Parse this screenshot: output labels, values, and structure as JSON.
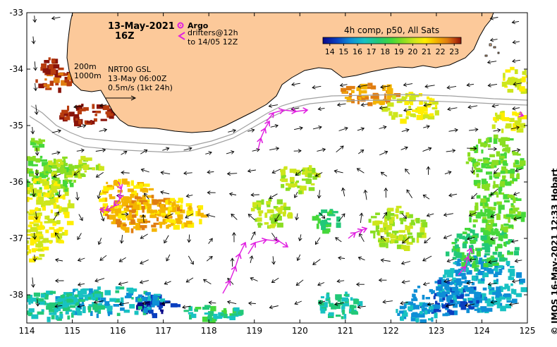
{
  "title": {
    "date": "13-May-2021",
    "time": "16Z"
  },
  "legend": {
    "argo_label": "Argo",
    "drifters_label": "drifters@12h",
    "drifters_to": "to 14/05 12Z",
    "depth_200": "200m",
    "depth_1000": "1000m",
    "product": "NRT00 GSL",
    "product_time": "13-May 06:00Z",
    "vector_scale": "0.5m/s (1kt 24h)",
    "colorbar_title": "4h comp, p50, All Sats",
    "colorbar_ticks": [
      "14",
      "15",
      "16",
      "17",
      "18",
      "19",
      "20",
      "21",
      "22",
      "23"
    ],
    "colorbar_min": 13.5,
    "colorbar_max": 23.5
  },
  "axes": {
    "x_ticks": [
      "114",
      "115",
      "116",
      "117",
      "118",
      "119",
      "120",
      "121",
      "122",
      "123",
      "124",
      "125"
    ],
    "y_ticks": [
      "-33",
      "-34",
      "-35",
      "-36",
      "-37",
      "-38"
    ],
    "lon_range": [
      114,
      125
    ],
    "lat_range": [
      -38.5,
      -33
    ]
  },
  "credit": "© IMOS 16-May-2021 12:33 Hobart",
  "colors": {
    "land": "#fcc99a",
    "argo": "#e020e0",
    "drifter": "#e020e0",
    "contour": "#a0a0a0",
    "colorbar": [
      "#08088a",
      "#0a3fbf",
      "#0e8fd6",
      "#18c2c2",
      "#22c878",
      "#46d83a",
      "#8ade22",
      "#cde61c",
      "#ffee00",
      "#f4b400",
      "#e07d10",
      "#b83c0e",
      "#8a140a"
    ]
  }
}
